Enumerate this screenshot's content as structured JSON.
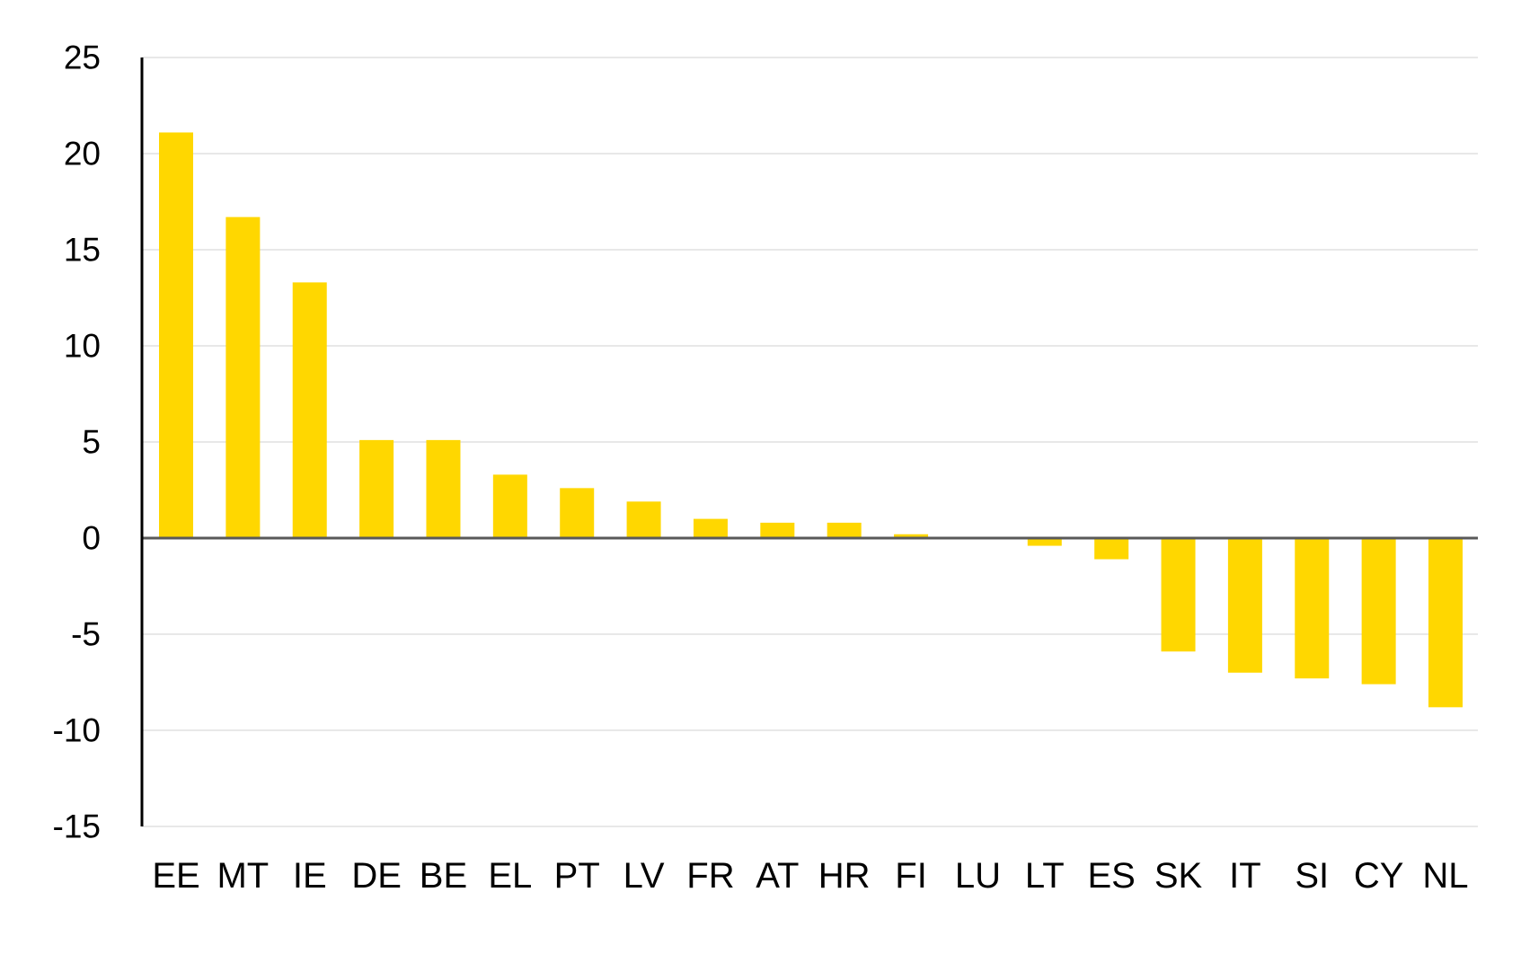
{
  "chart_data": {
    "type": "bar",
    "title": "",
    "xlabel": "",
    "ylabel": "",
    "categories": [
      "EE",
      "MT",
      "IE",
      "DE",
      "BE",
      "EL",
      "PT",
      "LV",
      "FR",
      "AT",
      "HR",
      "FI",
      "LU",
      "LT",
      "ES",
      "SK",
      "IT",
      "SI",
      "CY",
      "NL"
    ],
    "values": [
      21.1,
      16.7,
      13.3,
      5.1,
      5.1,
      3.3,
      2.6,
      1.9,
      1.0,
      0.8,
      0.8,
      0.2,
      0.0,
      -0.4,
      -1.1,
      -5.9,
      -7.0,
      -7.3,
      -7.6,
      -8.8
    ],
    "ylim": [
      -15,
      25
    ],
    "yticks": [
      "25",
      "20",
      "15",
      "10",
      "5",
      "0",
      "-5",
      "-10",
      "-15"
    ],
    "grid": true,
    "legend": "none",
    "colors": {
      "bar": "#FFD700",
      "grid": "#d9d9d9",
      "zero_line": "#595959",
      "axis": "#000000"
    }
  }
}
